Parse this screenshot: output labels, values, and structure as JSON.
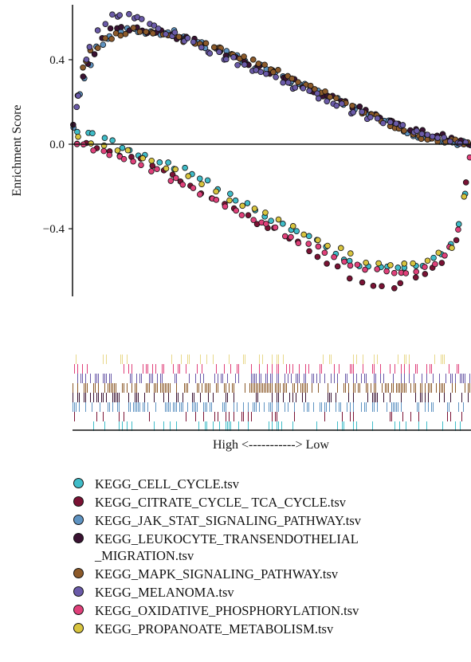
{
  "chart_data": {
    "type": "scatter",
    "ylabel": "Enrichment Score",
    "xlabel": "High <-----------> Low",
    "ylim": [
      -0.72,
      0.66
    ],
    "yticks": [
      {
        "v": 0.4,
        "label": "0.4"
      },
      {
        "v": 0.0,
        "label": "0.0"
      },
      {
        "v": -0.4,
        "label": "−0.4"
      }
    ],
    "xlim": [
      0,
      1
    ],
    "series": [
      {
        "name": "KEGG_CELL_CYCLE.tsv",
        "color": "#3fbcc8",
        "curve": [
          [
            0,
            0.07
          ],
          [
            0.1,
            0.01
          ],
          [
            0.3,
            -0.14
          ],
          [
            0.5,
            -0.35
          ],
          [
            0.62,
            -0.47
          ],
          [
            0.72,
            -0.58
          ],
          [
            0.8,
            -0.59
          ],
          [
            0.9,
            -0.56
          ],
          [
            0.96,
            -0.47
          ],
          [
            0.99,
            -0.2
          ],
          [
            1,
            0
          ]
        ],
        "n": 45,
        "seed": 1
      },
      {
        "name": "KEGG_CITRATE_CYCLE_ TCA_CYCLE.tsv",
        "color": "#7a1234",
        "curve": [
          [
            0,
            0.02
          ],
          [
            0.2,
            -0.1
          ],
          [
            0.4,
            -0.3
          ],
          [
            0.6,
            -0.5
          ],
          [
            0.72,
            -0.66
          ],
          [
            0.82,
            -0.67
          ],
          [
            0.92,
            -0.58
          ],
          [
            0.97,
            -0.42
          ],
          [
            0.99,
            -0.15
          ],
          [
            1,
            0
          ]
        ],
        "n": 38,
        "seed": 2
      },
      {
        "name": "KEGG_JAK_STAT_SIGNALING_PATHWAY.tsv",
        "color": "#5e93c2",
        "curve": [
          [
            0,
            0.04
          ],
          [
            0.02,
            0.25
          ],
          [
            0.06,
            0.45
          ],
          [
            0.12,
            0.54
          ],
          [
            0.25,
            0.53
          ],
          [
            0.45,
            0.38
          ],
          [
            0.65,
            0.22
          ],
          [
            0.85,
            0.05
          ],
          [
            1,
            0
          ]
        ],
        "n": 75,
        "seed": 3
      },
      {
        "name": "KEGG_LEUKOCYTE_TRANSENDOTHELIAL\n_MIGRATION.tsv",
        "color": "#3a1232",
        "curve": [
          [
            0,
            0.07
          ],
          [
            0.03,
            0.35
          ],
          [
            0.08,
            0.52
          ],
          [
            0.12,
            0.56
          ],
          [
            0.3,
            0.5
          ],
          [
            0.55,
            0.3
          ],
          [
            0.8,
            0.1
          ],
          [
            1,
            0
          ]
        ],
        "n": 60,
        "seed": 4
      },
      {
        "name": "KEGG_MAPK_SIGNALING_PATHWAY.tsv",
        "color": "#8c5a2a",
        "curve": [
          [
            0,
            0.1
          ],
          [
            0.03,
            0.4
          ],
          [
            0.08,
            0.5
          ],
          [
            0.15,
            0.54
          ],
          [
            0.35,
            0.47
          ],
          [
            0.6,
            0.28
          ],
          [
            0.85,
            0.04
          ],
          [
            1,
            0
          ]
        ],
        "n": 70,
        "seed": 5
      },
      {
        "name": "KEGG_MELANOMA.tsv",
        "color": "#6a5aa8",
        "curve": [
          [
            0,
            0.05
          ],
          [
            0.02,
            0.3
          ],
          [
            0.05,
            0.5
          ],
          [
            0.09,
            0.6
          ],
          [
            0.13,
            0.62
          ],
          [
            0.25,
            0.52
          ],
          [
            0.5,
            0.32
          ],
          [
            0.75,
            0.12
          ],
          [
            1,
            0
          ]
        ],
        "n": 70,
        "seed": 6
      },
      {
        "name": "KEGG_OXIDATIVE_PHOSPHORYLATION.tsv",
        "color": "#e0407a",
        "curve": [
          [
            0,
            0.02
          ],
          [
            0.2,
            -0.12
          ],
          [
            0.4,
            -0.3
          ],
          [
            0.55,
            -0.44
          ],
          [
            0.7,
            -0.57
          ],
          [
            0.8,
            -0.62
          ],
          [
            0.9,
            -0.58
          ],
          [
            0.96,
            -0.46
          ],
          [
            0.99,
            -0.2
          ],
          [
            1,
            0
          ]
        ],
        "n": 48,
        "seed": 7
      },
      {
        "name": "KEGG_PROPANOATE_METABOLISM.tsv",
        "color": "#d8c43e",
        "curve": [
          [
            0,
            0.03
          ],
          [
            0.2,
            -0.07
          ],
          [
            0.4,
            -0.26
          ],
          [
            0.6,
            -0.44
          ],
          [
            0.75,
            -0.56
          ],
          [
            0.85,
            -0.58
          ],
          [
            0.95,
            -0.5
          ],
          [
            0.99,
            -0.2
          ],
          [
            1,
            0
          ]
        ],
        "n": 32,
        "seed": 8
      }
    ],
    "barcode_rows": [
      {
        "color": "#e8d88a",
        "density": 0.16,
        "seed": 11
      },
      {
        "color": "#e0407a",
        "density": 0.22,
        "seed": 12
      },
      {
        "color": "#6a5aa8",
        "density": 0.35,
        "seed": 13
      },
      {
        "color": "#8c5a2a",
        "density": 0.55,
        "seed": 14
      },
      {
        "color": "#3a1232",
        "density": 0.28,
        "seed": 15
      },
      {
        "color": "#5e93c2",
        "density": 0.4,
        "seed": 16
      },
      {
        "color": "#7a1234",
        "density": 0.12,
        "seed": 17
      },
      {
        "color": "#3fbcc8",
        "density": 0.2,
        "seed": 18
      }
    ]
  }
}
